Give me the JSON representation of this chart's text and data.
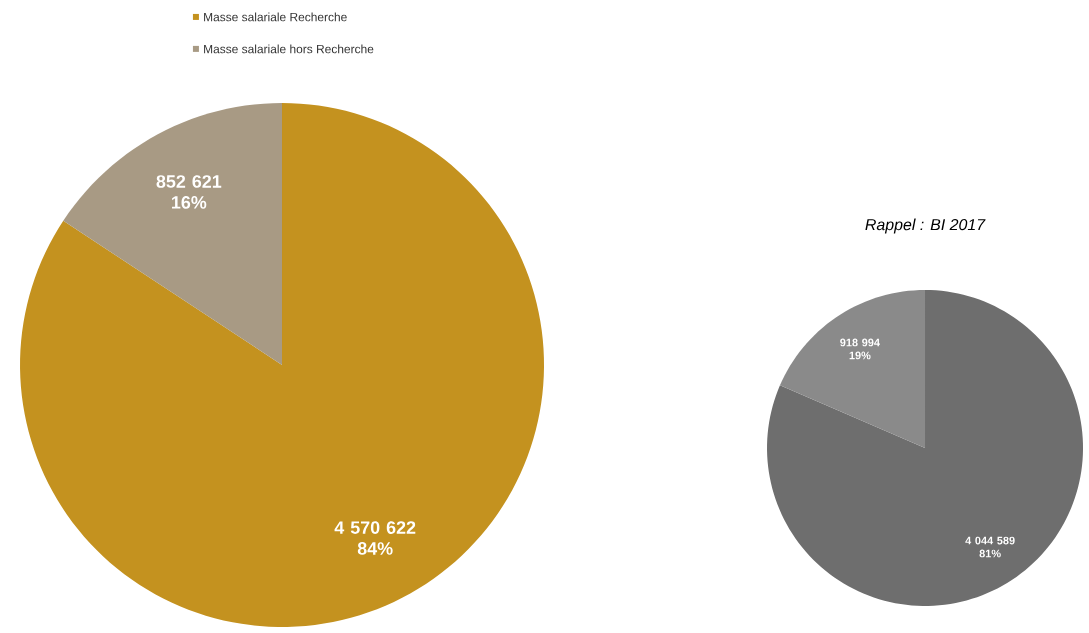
{
  "chart_data": [
    {
      "type": "pie",
      "categories": [
        "Masse salariale Recherche",
        "Masse salariale hors Recherche"
      ],
      "values": [
        4570622,
        852621
      ],
      "colors": [
        "#c4921f",
        "#a89a84"
      ],
      "value_labels": [
        "4 570 622 84%",
        "852 621 16%"
      ],
      "legend": "top"
    },
    {
      "type": "pie",
      "title": "Rappel : BI 2017",
      "categories": [
        null,
        null
      ],
      "values": [
        4044589,
        918994
      ],
      "colors": [
        "#6e6e6e",
        "#8a8a8a"
      ],
      "value_labels": [
        "4 044 589 81%",
        "918 994 19%"
      ]
    }
  ]
}
